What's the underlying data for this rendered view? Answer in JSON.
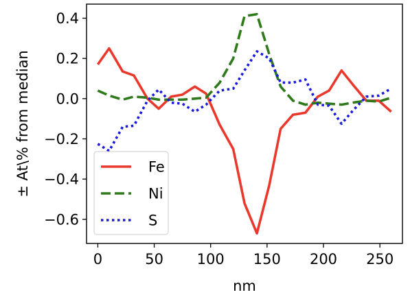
{
  "chart_data": {
    "type": "line",
    "xlabel": "nm",
    "ylabel": "± At\\% from median",
    "xlim": [
      -10,
      270
    ],
    "ylim": [
      -0.72,
      0.47
    ],
    "x_ticks": [
      0,
      50,
      100,
      150,
      200,
      250
    ],
    "x_tick_labels": [
      "0",
      "50",
      "100",
      "150",
      "200",
      "250"
    ],
    "y_ticks": [
      -0.6,
      -0.4,
      -0.2,
      0.0,
      0.2,
      0.4
    ],
    "y_tick_labels": [
      "−0.6",
      "−0.4",
      "−0.2",
      "0.0",
      "0.2",
      "0.4"
    ],
    "grid": false,
    "legend_position": "lower-left",
    "series": [
      {
        "name": "Fe",
        "color": "#e8392c",
        "style": "solid",
        "points": [
          [
            0,
            0.17
          ],
          [
            10,
            0.25
          ],
          [
            22,
            0.135
          ],
          [
            32,
            0.115
          ],
          [
            44,
            0.0
          ],
          [
            54,
            -0.05
          ],
          [
            65,
            0.01
          ],
          [
            75,
            0.02
          ],
          [
            86,
            0.06
          ],
          [
            96,
            0.025
          ],
          [
            108,
            -0.13
          ],
          [
            120,
            -0.25
          ],
          [
            130,
            -0.52
          ],
          [
            141,
            -0.67
          ],
          [
            152,
            -0.43
          ],
          [
            162,
            -0.15
          ],
          [
            173,
            -0.08
          ],
          [
            184,
            -0.07
          ],
          [
            195,
            0.01
          ],
          [
            205,
            0.04
          ],
          [
            216,
            0.14
          ],
          [
            226,
            0.07
          ],
          [
            238,
            -0.01
          ],
          [
            249,
            -0.01
          ],
          [
            260,
            -0.065
          ]
        ]
      },
      {
        "name": "Ni",
        "color": "#2e7a1a",
        "style": "dashed",
        "points": [
          [
            0,
            0.04
          ],
          [
            10,
            0.015
          ],
          [
            22,
            -0.005
          ],
          [
            32,
            0.01
          ],
          [
            44,
            0.005
          ],
          [
            54,
            -0.005
          ],
          [
            65,
            -0.005
          ],
          [
            75,
            -0.005
          ],
          [
            86,
            0.0
          ],
          [
            96,
            0.005
          ],
          [
            108,
            0.08
          ],
          [
            120,
            0.2
          ],
          [
            130,
            0.41
          ],
          [
            141,
            0.42
          ],
          [
            152,
            0.22
          ],
          [
            162,
            0.06
          ],
          [
            173,
            -0.01
          ],
          [
            184,
            -0.03
          ],
          [
            195,
            -0.02
          ],
          [
            205,
            -0.025
          ],
          [
            216,
            -0.03
          ],
          [
            226,
            -0.02
          ],
          [
            238,
            -0.01
          ],
          [
            249,
            -0.015
          ],
          [
            260,
            0.005
          ]
        ]
      },
      {
        "name": "S",
        "color": "#1a1adf",
        "style": "dotted",
        "points": [
          [
            0,
            -0.225
          ],
          [
            10,
            -0.26
          ],
          [
            22,
            -0.14
          ],
          [
            32,
            -0.135
          ],
          [
            44,
            -0.01
          ],
          [
            54,
            0.045
          ],
          [
            65,
            -0.02
          ],
          [
            75,
            -0.025
          ],
          [
            86,
            -0.065
          ],
          [
            96,
            -0.03
          ],
          [
            108,
            0.04
          ],
          [
            120,
            0.05
          ],
          [
            130,
            0.14
          ],
          [
            141,
            0.235
          ],
          [
            152,
            0.2
          ],
          [
            162,
            0.08
          ],
          [
            173,
            0.08
          ],
          [
            184,
            0.095
          ],
          [
            195,
            -0.03
          ],
          [
            205,
            -0.035
          ],
          [
            216,
            -0.125
          ],
          [
            226,
            -0.06
          ],
          [
            238,
            0.01
          ],
          [
            249,
            0.015
          ],
          [
            260,
            0.05
          ]
        ]
      }
    ]
  }
}
